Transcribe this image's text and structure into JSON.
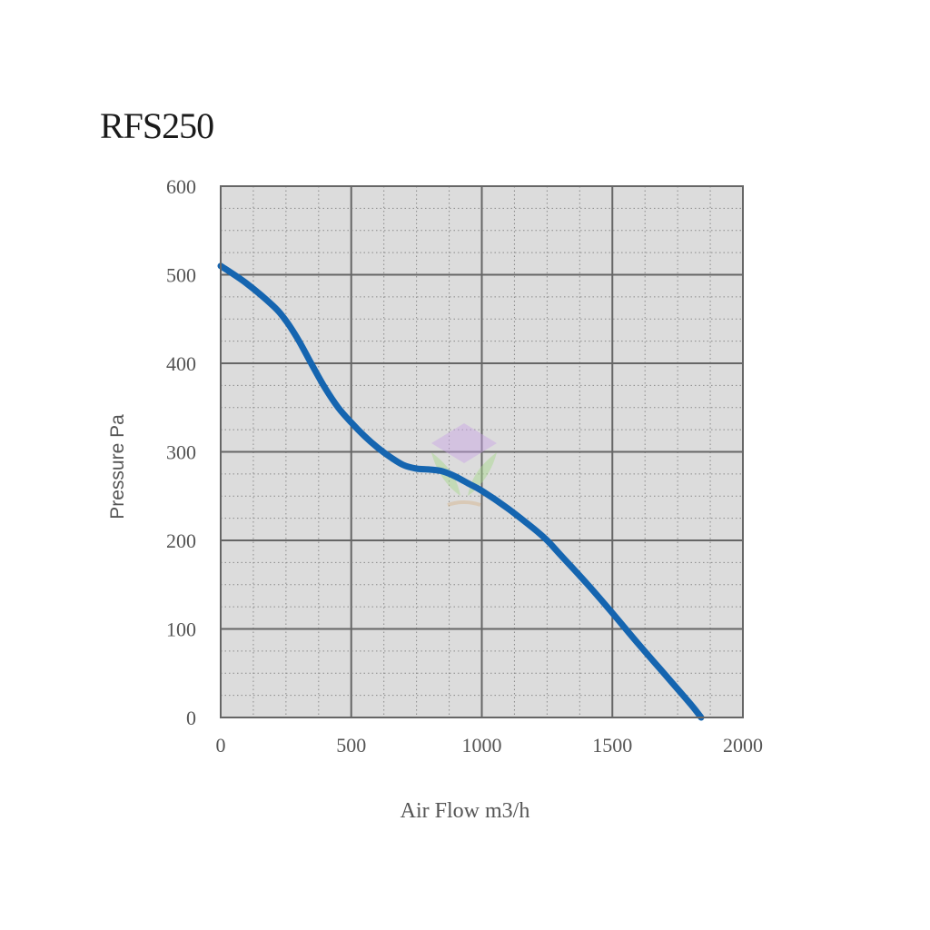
{
  "chart_data": {
    "type": "line",
    "title": "RFS250",
    "xlabel": "Air Flow m3/h",
    "ylabel": "Pressure Pa",
    "xlim": [
      0,
      2000
    ],
    "ylim": [
      0,
      600
    ],
    "xticks": [
      "0",
      "500",
      "1000",
      "1500",
      "2000"
    ],
    "yticks": [
      "0",
      "100",
      "200",
      "300",
      "400",
      "500",
      "600"
    ],
    "grid": true,
    "colors": {
      "line": "#1565b0",
      "plot_bg": "#dcdcdc",
      "grid_major": "#666666",
      "grid_minor": "#8a8a8a"
    },
    "series": [
      {
        "x": [
          0,
          100,
          200,
          250,
          300,
          350,
          400,
          450,
          500,
          550,
          600,
          650,
          700,
          750,
          800,
          850,
          900,
          950,
          1000,
          1100,
          1200,
          1250,
          1300,
          1400,
          1500,
          1600,
          1700,
          1800,
          1840
        ],
        "y": [
          510,
          490,
          465,
          448,
          425,
          398,
          372,
          350,
          333,
          318,
          305,
          294,
          285,
          281,
          280,
          278,
          272,
          264,
          256,
          236,
          213,
          200,
          184,
          152,
          118,
          83,
          49,
          15,
          0
        ]
      }
    ]
  }
}
